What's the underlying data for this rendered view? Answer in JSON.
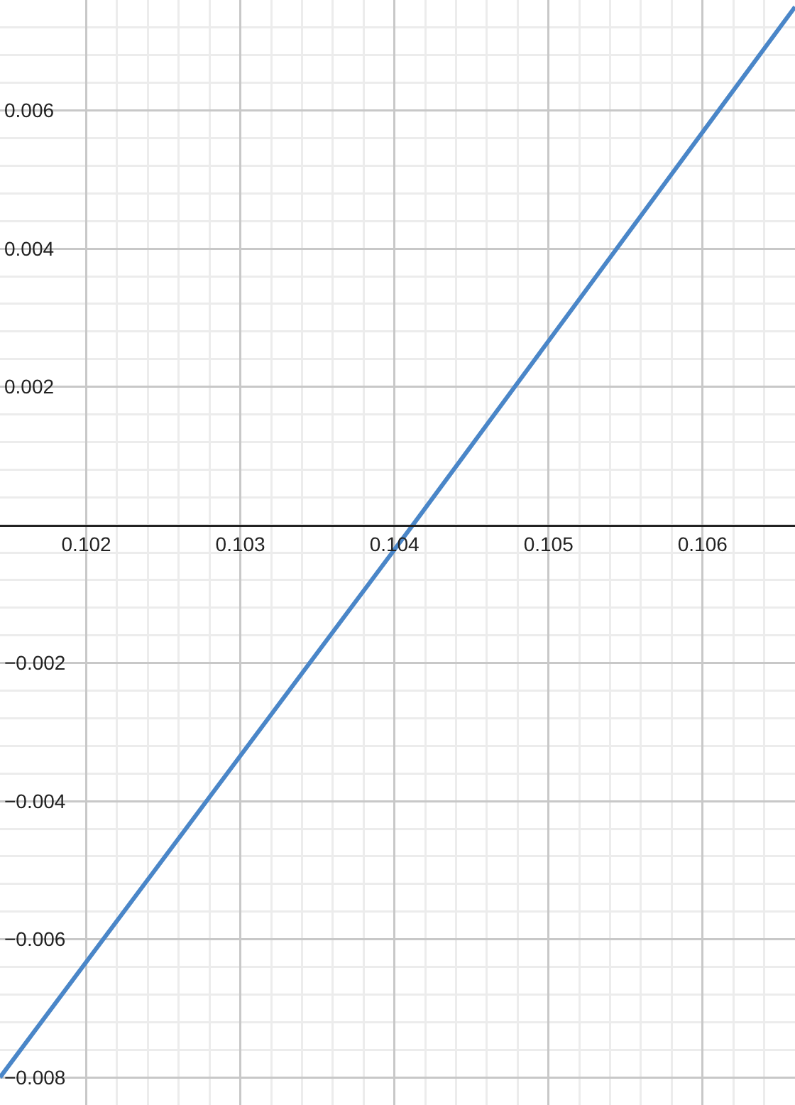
{
  "chart_data": {
    "type": "line",
    "x": [
      0.10144,
      0.10412,
      0.1066
    ],
    "series": [
      {
        "color": "#4a86c8",
        "values": [
          -0.008,
          0,
          0.0075
        ]
      }
    ],
    "xlim": [
      0.10144,
      0.1066
    ],
    "ylim": [
      -0.0084,
      0.0076
    ],
    "xticks": [
      0.102,
      0.103,
      0.104,
      0.105,
      0.106
    ],
    "yticks": [
      {
        "value": -0.008,
        "label": "−0.008"
      },
      {
        "value": -0.006,
        "label": "−0.006"
      },
      {
        "value": -0.004,
        "label": "−0.004"
      },
      {
        "value": -0.002,
        "label": "−0.002"
      },
      0.002,
      0.004,
      0.006
    ],
    "grid": true,
    "marker": "none",
    "line_style": "solid"
  }
}
